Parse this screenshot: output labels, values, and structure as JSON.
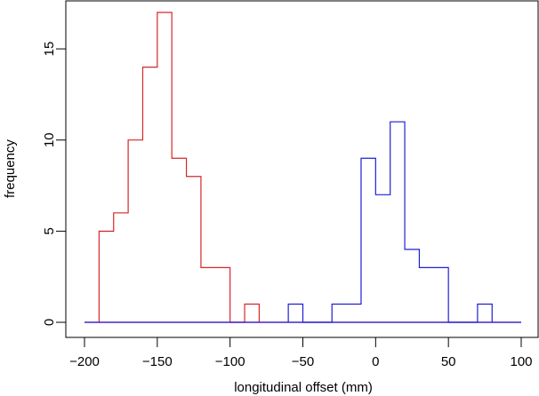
{
  "chart_data": {
    "type": "histogram",
    "xlabel": "longitudinal offset (mm)",
    "ylabel": "frequency",
    "xlim": [
      -200,
      100
    ],
    "ylim": [
      0,
      17
    ],
    "xticks": [
      -200,
      -150,
      -100,
      -50,
      0,
      50,
      100
    ],
    "yticks": [
      0,
      5,
      10,
      15
    ],
    "grid": false,
    "bin_width": 10,
    "baseline_range": [
      -200,
      100
    ],
    "series": [
      {
        "color": "#d62728",
        "bins": [
          {
            "x0": -190,
            "x1": -180,
            "count": 5
          },
          {
            "x0": -180,
            "x1": -170,
            "count": 6
          },
          {
            "x0": -170,
            "x1": -160,
            "count": 10
          },
          {
            "x0": -160,
            "x1": -150,
            "count": 14
          },
          {
            "x0": -150,
            "x1": -140,
            "count": 17
          },
          {
            "x0": -140,
            "x1": -130,
            "count": 9
          },
          {
            "x0": -130,
            "x1": -120,
            "count": 8
          },
          {
            "x0": -120,
            "x1": -110,
            "count": 3
          },
          {
            "x0": -110,
            "x1": -100,
            "count": 3
          },
          {
            "x0": -100,
            "x1": -90,
            "count": 0
          },
          {
            "x0": -90,
            "x1": -80,
            "count": 1
          }
        ]
      },
      {
        "color": "#1f1fd6",
        "bins": [
          {
            "x0": -60,
            "x1": -50,
            "count": 1
          },
          {
            "x0": -50,
            "x1": -40,
            "count": 0
          },
          {
            "x0": -40,
            "x1": -30,
            "count": 0
          },
          {
            "x0": -30,
            "x1": -20,
            "count": 1
          },
          {
            "x0": -20,
            "x1": -10,
            "count": 1
          },
          {
            "x0": -10,
            "x1": 0,
            "count": 9
          },
          {
            "x0": 0,
            "x1": 10,
            "count": 7
          },
          {
            "x0": 10,
            "x1": 20,
            "count": 11
          },
          {
            "x0": 20,
            "x1": 30,
            "count": 4
          },
          {
            "x0": 30,
            "x1": 40,
            "count": 3
          },
          {
            "x0": 40,
            "x1": 50,
            "count": 3
          },
          {
            "x0": 50,
            "x1": 60,
            "count": 0
          },
          {
            "x0": 60,
            "x1": 70,
            "count": 0
          },
          {
            "x0": 70,
            "x1": 80,
            "count": 1
          }
        ]
      }
    ]
  }
}
